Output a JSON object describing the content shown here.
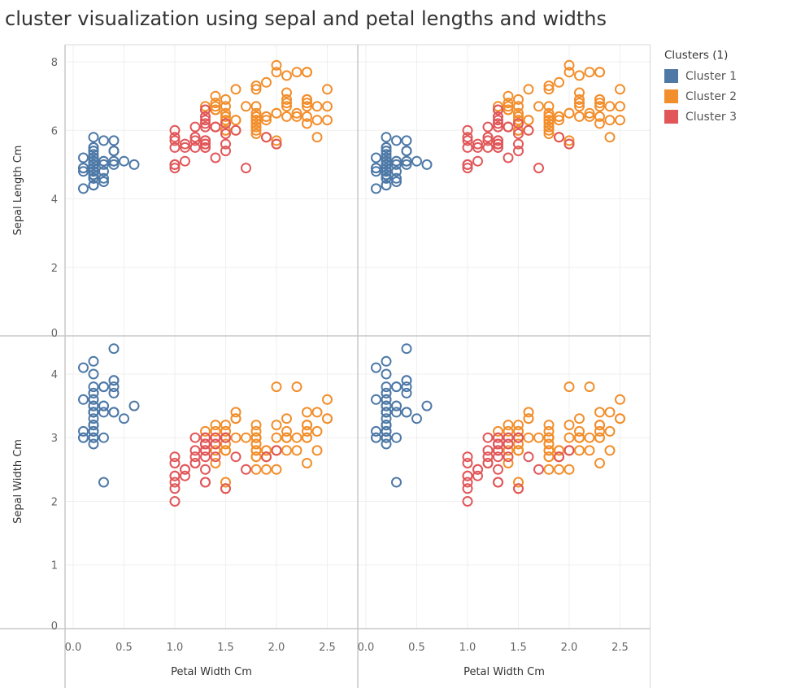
{
  "title": "cluster visualization using sepal and petal lengths and widths",
  "legend": {
    "title": "Clusters (1)",
    "items": [
      {
        "label": "Cluster 1",
        "color": "#4e79a7"
      },
      {
        "label": "Cluster 2",
        "color": "#f28e2b"
      },
      {
        "label": "Cluster 3",
        "color": "#e15759"
      }
    ]
  },
  "chart_data": {
    "type": "scatter",
    "grid": true,
    "columns": 2,
    "xlabel": "Petal Width Cm",
    "xlim": [
      -0.08,
      2.8
    ],
    "xticks": [
      "0.0",
      "0.5",
      "1.0",
      "1.5",
      "2.0",
      "2.5"
    ],
    "rows": [
      {
        "ylabel": "Sepal Length Cm",
        "ylim": [
          0,
          8.5
        ],
        "yticks": [
          "0",
          "2",
          "4",
          "6",
          "8"
        ]
      },
      {
        "ylabel": "Sepal Width Cm",
        "ylim": [
          0,
          4.6
        ],
        "yticks": [
          "0",
          "1",
          "2",
          "3",
          "4"
        ]
      }
    ],
    "series": [
      {
        "name": "Cluster 1",
        "color": "#4e79a7",
        "points": [
          [
            0.2,
            5.1,
            3.5
          ],
          [
            0.2,
            4.9,
            3.0
          ],
          [
            0.2,
            4.7,
            3.2
          ],
          [
            0.2,
            4.6,
            3.1
          ],
          [
            0.2,
            5.0,
            3.6
          ],
          [
            0.4,
            5.4,
            3.9
          ],
          [
            0.3,
            4.6,
            3.4
          ],
          [
            0.2,
            5.0,
            3.4
          ],
          [
            0.2,
            4.4,
            2.9
          ],
          [
            0.1,
            4.9,
            3.1
          ],
          [
            0.2,
            5.4,
            3.7
          ],
          [
            0.2,
            4.8,
            3.4
          ],
          [
            0.1,
            4.8,
            3.0
          ],
          [
            0.1,
            4.3,
            3.0
          ],
          [
            0.2,
            5.8,
            4.0
          ],
          [
            0.4,
            5.7,
            4.4
          ],
          [
            0.4,
            5.4,
            3.9
          ],
          [
            0.3,
            5.1,
            3.5
          ],
          [
            0.3,
            5.7,
            3.8
          ],
          [
            0.3,
            5.1,
            3.8
          ],
          [
            0.2,
            5.4,
            3.4
          ],
          [
            0.4,
            5.1,
            3.7
          ],
          [
            0.2,
            4.6,
            3.6
          ],
          [
            0.5,
            5.1,
            3.3
          ],
          [
            0.2,
            4.8,
            3.4
          ],
          [
            0.2,
            5.0,
            3.0
          ],
          [
            0.4,
            5.0,
            3.4
          ],
          [
            0.2,
            5.2,
            3.5
          ],
          [
            0.2,
            5.2,
            3.4
          ],
          [
            0.2,
            4.7,
            3.2
          ],
          [
            0.2,
            4.8,
            3.1
          ],
          [
            0.4,
            5.4,
            3.4
          ],
          [
            0.1,
            5.2,
            4.1
          ],
          [
            0.2,
            5.5,
            4.2
          ],
          [
            0.2,
            4.9,
            3.1
          ],
          [
            0.2,
            5.0,
            3.2
          ],
          [
            0.2,
            5.5,
            3.5
          ],
          [
            0.1,
            4.9,
            3.6
          ],
          [
            0.2,
            4.4,
            3.0
          ],
          [
            0.2,
            5.1,
            3.4
          ],
          [
            0.3,
            5.0,
            3.5
          ],
          [
            0.3,
            4.5,
            2.3
          ],
          [
            0.2,
            4.4,
            3.2
          ],
          [
            0.6,
            5.0,
            3.5
          ],
          [
            0.4,
            5.1,
            3.8
          ],
          [
            0.3,
            4.8,
            3.0
          ],
          [
            0.2,
            5.1,
            3.8
          ],
          [
            0.2,
            4.6,
            3.2
          ],
          [
            0.2,
            5.3,
            3.7
          ],
          [
            0.2,
            5.0,
            3.3
          ]
        ]
      },
      {
        "name": "Cluster 2",
        "color": "#f28e2b",
        "points": [
          [
            1.4,
            7.0,
            3.2
          ],
          [
            1.5,
            6.4,
            3.2
          ],
          [
            1.5,
            6.9,
            3.1
          ],
          [
            1.5,
            6.5,
            2.8
          ],
          [
            1.6,
            6.3,
            3.3
          ],
          [
            1.4,
            6.6,
            2.9
          ],
          [
            1.3,
            6.7,
            3.1
          ],
          [
            1.4,
            6.8,
            2.8
          ],
          [
            1.7,
            6.7,
            3.0
          ],
          [
            1.5,
            6.0,
            2.9
          ],
          [
            1.4,
            6.7,
            3.1
          ],
          [
            1.5,
            6.3,
            2.3
          ],
          [
            1.6,
            6.0,
            3.4
          ],
          [
            1.5,
            6.7,
            3.1
          ],
          [
            1.4,
            6.6,
            3.0
          ],
          [
            1.8,
            6.4,
            2.8
          ],
          [
            1.5,
            6.2,
            2.8
          ],
          [
            1.8,
            6.3,
            2.7
          ],
          [
            1.9,
            6.4,
            2.8
          ],
          [
            1.8,
            6.1,
            3.0
          ],
          [
            2.5,
            6.3,
            3.3
          ],
          [
            1.9,
            5.8,
            2.7
          ],
          [
            2.1,
            7.1,
            3.0
          ],
          [
            1.8,
            6.3,
            2.9
          ],
          [
            2.2,
            6.5,
            3.0
          ],
          [
            2.1,
            7.6,
            3.0
          ],
          [
            1.8,
            7.3,
            2.9
          ],
          [
            1.8,
            6.7,
            2.5
          ],
          [
            2.5,
            7.2,
            3.6
          ],
          [
            2.0,
            6.5,
            3.2
          ],
          [
            1.9,
            6.4,
            2.7
          ],
          [
            2.1,
            6.8,
            3.0
          ],
          [
            2.0,
            5.7,
            2.5
          ],
          [
            2.4,
            5.8,
            2.8
          ],
          [
            2.3,
            6.4,
            3.2
          ],
          [
            1.8,
            6.5,
            3.0
          ],
          [
            2.2,
            7.7,
            3.8
          ],
          [
            2.3,
            7.7,
            2.6
          ],
          [
            1.5,
            6.0,
            2.2
          ],
          [
            2.3,
            6.9,
            3.2
          ],
          [
            2.0,
            5.6,
            2.8
          ],
          [
            2.0,
            7.7,
            2.8
          ],
          [
            1.8,
            6.3,
            2.7
          ],
          [
            2.1,
            6.7,
            3.3
          ],
          [
            1.8,
            7.2,
            3.2
          ],
          [
            1.8,
            6.2,
            2.8
          ],
          [
            1.8,
            6.1,
            3.0
          ],
          [
            2.1,
            6.4,
            2.8
          ],
          [
            1.6,
            7.2,
            3.0
          ],
          [
            1.9,
            7.4,
            2.8
          ],
          [
            2.0,
            7.9,
            3.8
          ],
          [
            2.2,
            6.4,
            2.8
          ],
          [
            1.5,
            6.3,
            2.8
          ],
          [
            1.4,
            6.1,
            2.6
          ],
          [
            2.3,
            7.7,
            3.0
          ],
          [
            2.4,
            6.3,
            3.4
          ],
          [
            1.8,
            6.4,
            3.1
          ],
          [
            1.8,
            6.0,
            3.0
          ],
          [
            2.1,
            6.9,
            3.1
          ],
          [
            2.4,
            6.7,
            3.1
          ],
          [
            2.3,
            6.9,
            3.1
          ],
          [
            1.9,
            5.8,
            2.7
          ],
          [
            2.3,
            6.8,
            3.2
          ],
          [
            2.5,
            6.7,
            3.3
          ],
          [
            2.3,
            6.7,
            3.0
          ],
          [
            1.9,
            6.3,
            2.5
          ],
          [
            2.0,
            6.5,
            3.0
          ],
          [
            2.3,
            6.2,
            3.4
          ],
          [
            1.8,
            5.9,
            3.0
          ],
          [
            1.6,
            6.3,
            3.3
          ]
        ]
      },
      {
        "name": "Cluster 3",
        "color": "#e15759",
        "points": [
          [
            1.3,
            5.5,
            2.3
          ],
          [
            1.3,
            5.7,
            2.8
          ],
          [
            1.0,
            4.9,
            2.4
          ],
          [
            1.3,
            6.6,
            2.9
          ],
          [
            1.4,
            5.2,
            2.7
          ],
          [
            1.0,
            5.0,
            2.0
          ],
          [
            1.5,
            5.9,
            3.0
          ],
          [
            1.0,
            6.0,
            2.2
          ],
          [
            1.4,
            6.1,
            2.9
          ],
          [
            1.3,
            5.6,
            2.9
          ],
          [
            1.5,
            5.6,
            3.0
          ],
          [
            1.0,
            5.8,
            2.7
          ],
          [
            1.5,
            6.2,
            2.2
          ],
          [
            1.1,
            5.6,
            2.5
          ],
          [
            1.3,
            6.1,
            2.8
          ],
          [
            1.2,
            6.1,
            2.8
          ],
          [
            1.3,
            6.4,
            2.9
          ],
          [
            1.3,
            6.6,
            3.0
          ],
          [
            1.0,
            5.7,
            2.6
          ],
          [
            1.1,
            5.5,
            2.4
          ],
          [
            1.0,
            5.5,
            2.4
          ],
          [
            1.2,
            5.8,
            2.7
          ],
          [
            1.6,
            6.0,
            2.7
          ],
          [
            1.5,
            5.4,
            3.0
          ],
          [
            1.3,
            6.3,
            2.3
          ],
          [
            1.3,
            5.6,
            3.0
          ],
          [
            1.3,
            5.5,
            2.5
          ],
          [
            1.2,
            5.5,
            2.6
          ],
          [
            1.4,
            6.1,
            3.0
          ],
          [
            1.2,
            5.8,
            2.6
          ],
          [
            1.0,
            5.0,
            2.3
          ],
          [
            1.3,
            5.6,
            2.7
          ],
          [
            1.2,
            5.7,
            3.0
          ],
          [
            1.3,
            5.7,
            2.9
          ],
          [
            1.3,
            6.2,
            2.9
          ],
          [
            1.1,
            5.1,
            2.5
          ],
          [
            1.3,
            5.7,
            2.8
          ],
          [
            1.7,
            4.9,
            2.5
          ],
          [
            1.9,
            5.8,
            2.7
          ],
          [
            2.0,
            5.6,
            2.8
          ]
        ]
      }
    ]
  }
}
